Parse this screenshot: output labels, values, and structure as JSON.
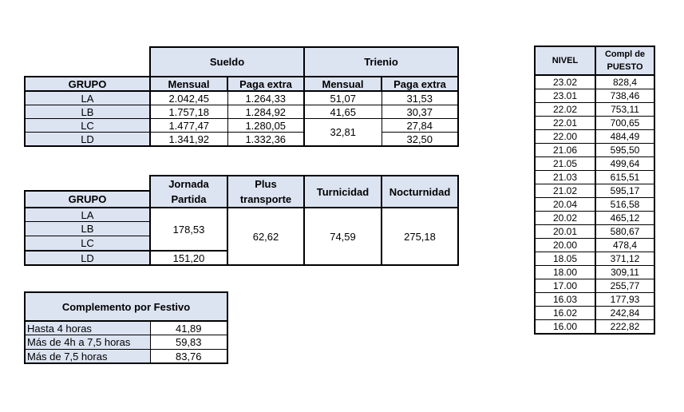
{
  "table1": {
    "header_sueldo": "Sueldo",
    "header_trienio": "Trienio",
    "col_grupo": "GRUPO",
    "col_mensual": "Mensual",
    "col_paga_extra": "Paga extra",
    "rows": [
      {
        "grupo": "LA",
        "sueldo_mensual": "2.042,45",
        "sueldo_paga": "1.264,33",
        "trienio_mensual": "51,07",
        "trienio_paga": "31,53"
      },
      {
        "grupo": "LB",
        "sueldo_mensual": "1.757,18",
        "sueldo_paga": "1.284,92",
        "trienio_mensual": "41,65",
        "trienio_paga": "30,37"
      },
      {
        "grupo": "LC",
        "sueldo_mensual": "1.477,47",
        "sueldo_paga": "1.280,05",
        "trienio_mensual": "32,81",
        "trienio_paga": "27,84"
      },
      {
        "grupo": "LD",
        "sueldo_mensual": "1.341,92",
        "sueldo_paga": "1.332,36",
        "trienio_paga": "32,50"
      }
    ]
  },
  "table2": {
    "col_grupo": "GRUPO",
    "col_jornada_1": "Jornada",
    "col_jornada_2": "Partida",
    "col_plus_1": "Plus",
    "col_plus_2": "transporte",
    "col_turnicidad": "Turnicidad",
    "col_nocturnidad": "Nocturnidad",
    "grupos": [
      "LA",
      "LB",
      "LC",
      "LD"
    ],
    "jornada_la_lc": "178,53",
    "jornada_ld": "151,20",
    "plus_transporte": "62,62",
    "turnicidad": "74,59",
    "nocturnidad": "275,18"
  },
  "table3": {
    "title": "Complemento por Festivo",
    "rows": [
      {
        "label": "Hasta 4 horas",
        "value": "41,89"
      },
      {
        "label": "Más de 4h a 7,5 horas",
        "value": "59,83"
      },
      {
        "label": "Más de 7,5 horas",
        "value": "83,76"
      }
    ]
  },
  "table4": {
    "col_nivel": "NIVEL",
    "col_compl_1": "Compl de",
    "col_compl_2": "PUESTO",
    "rows": [
      {
        "nivel": "23.02",
        "compl": "828,4"
      },
      {
        "nivel": "23.01",
        "compl": "738,46"
      },
      {
        "nivel": "22.02",
        "compl": "753,11"
      },
      {
        "nivel": "22.01",
        "compl": "700,65"
      },
      {
        "nivel": "22.00",
        "compl": "484,49"
      },
      {
        "nivel": "21.06",
        "compl": "595,50"
      },
      {
        "nivel": "21.05",
        "compl": "499,64"
      },
      {
        "nivel": "21.03",
        "compl": "615,51"
      },
      {
        "nivel": "21.02",
        "compl": "595,17"
      },
      {
        "nivel": "20.04",
        "compl": "516,58"
      },
      {
        "nivel": "20.02",
        "compl": "465,12"
      },
      {
        "nivel": "20.01",
        "compl": "580,67"
      },
      {
        "nivel": "20.00",
        "compl": "478,4"
      },
      {
        "nivel": "18.05",
        "compl": "371,12"
      },
      {
        "nivel": "18.00",
        "compl": "309,11"
      },
      {
        "nivel": "17.00",
        "compl": "255,77"
      },
      {
        "nivel": "16.03",
        "compl": "177,93"
      },
      {
        "nivel": "16.02",
        "compl": "242,84"
      },
      {
        "nivel": "16.00",
        "compl": "222,82"
      }
    ]
  }
}
